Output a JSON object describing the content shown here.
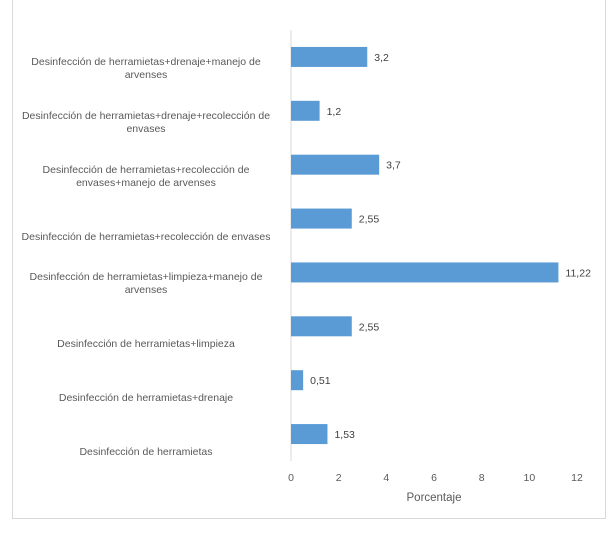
{
  "chart_data": {
    "type": "bar",
    "orientation": "horizontal",
    "categories": [
      "Desinfección de herramietas+drenaje+manejo de arvenses",
      "Desinfección de herramietas+drenaje+recolección de envases",
      "Desinfección de herramietas+recolección de envases+manejo de arvenses",
      "Desinfección de herramietas+recolección de envases",
      "Desinfección de herramietas+limpieza+manejo de arvenses",
      "Desinfección de herramietas+limpieza",
      "Desinfección de herramietas+drenaje",
      "Desinfección de herramietas"
    ],
    "values": [
      3.2,
      1.2,
      3.7,
      2.55,
      11.22,
      2.55,
      0.51,
      1.53
    ],
    "data_labels": [
      "3,2",
      "1,2",
      "3,7",
      "2,55",
      "11,22",
      "2,55",
      "0,51",
      "1,53"
    ],
    "xlabel": "Porcentaje",
    "ylabel": "",
    "xlim": [
      0,
      12
    ],
    "xticks": [
      "0",
      "2",
      "4",
      "6",
      "8",
      "10",
      "12"
    ],
    "grid": false,
    "bar_color": "#5b9bd5"
  }
}
